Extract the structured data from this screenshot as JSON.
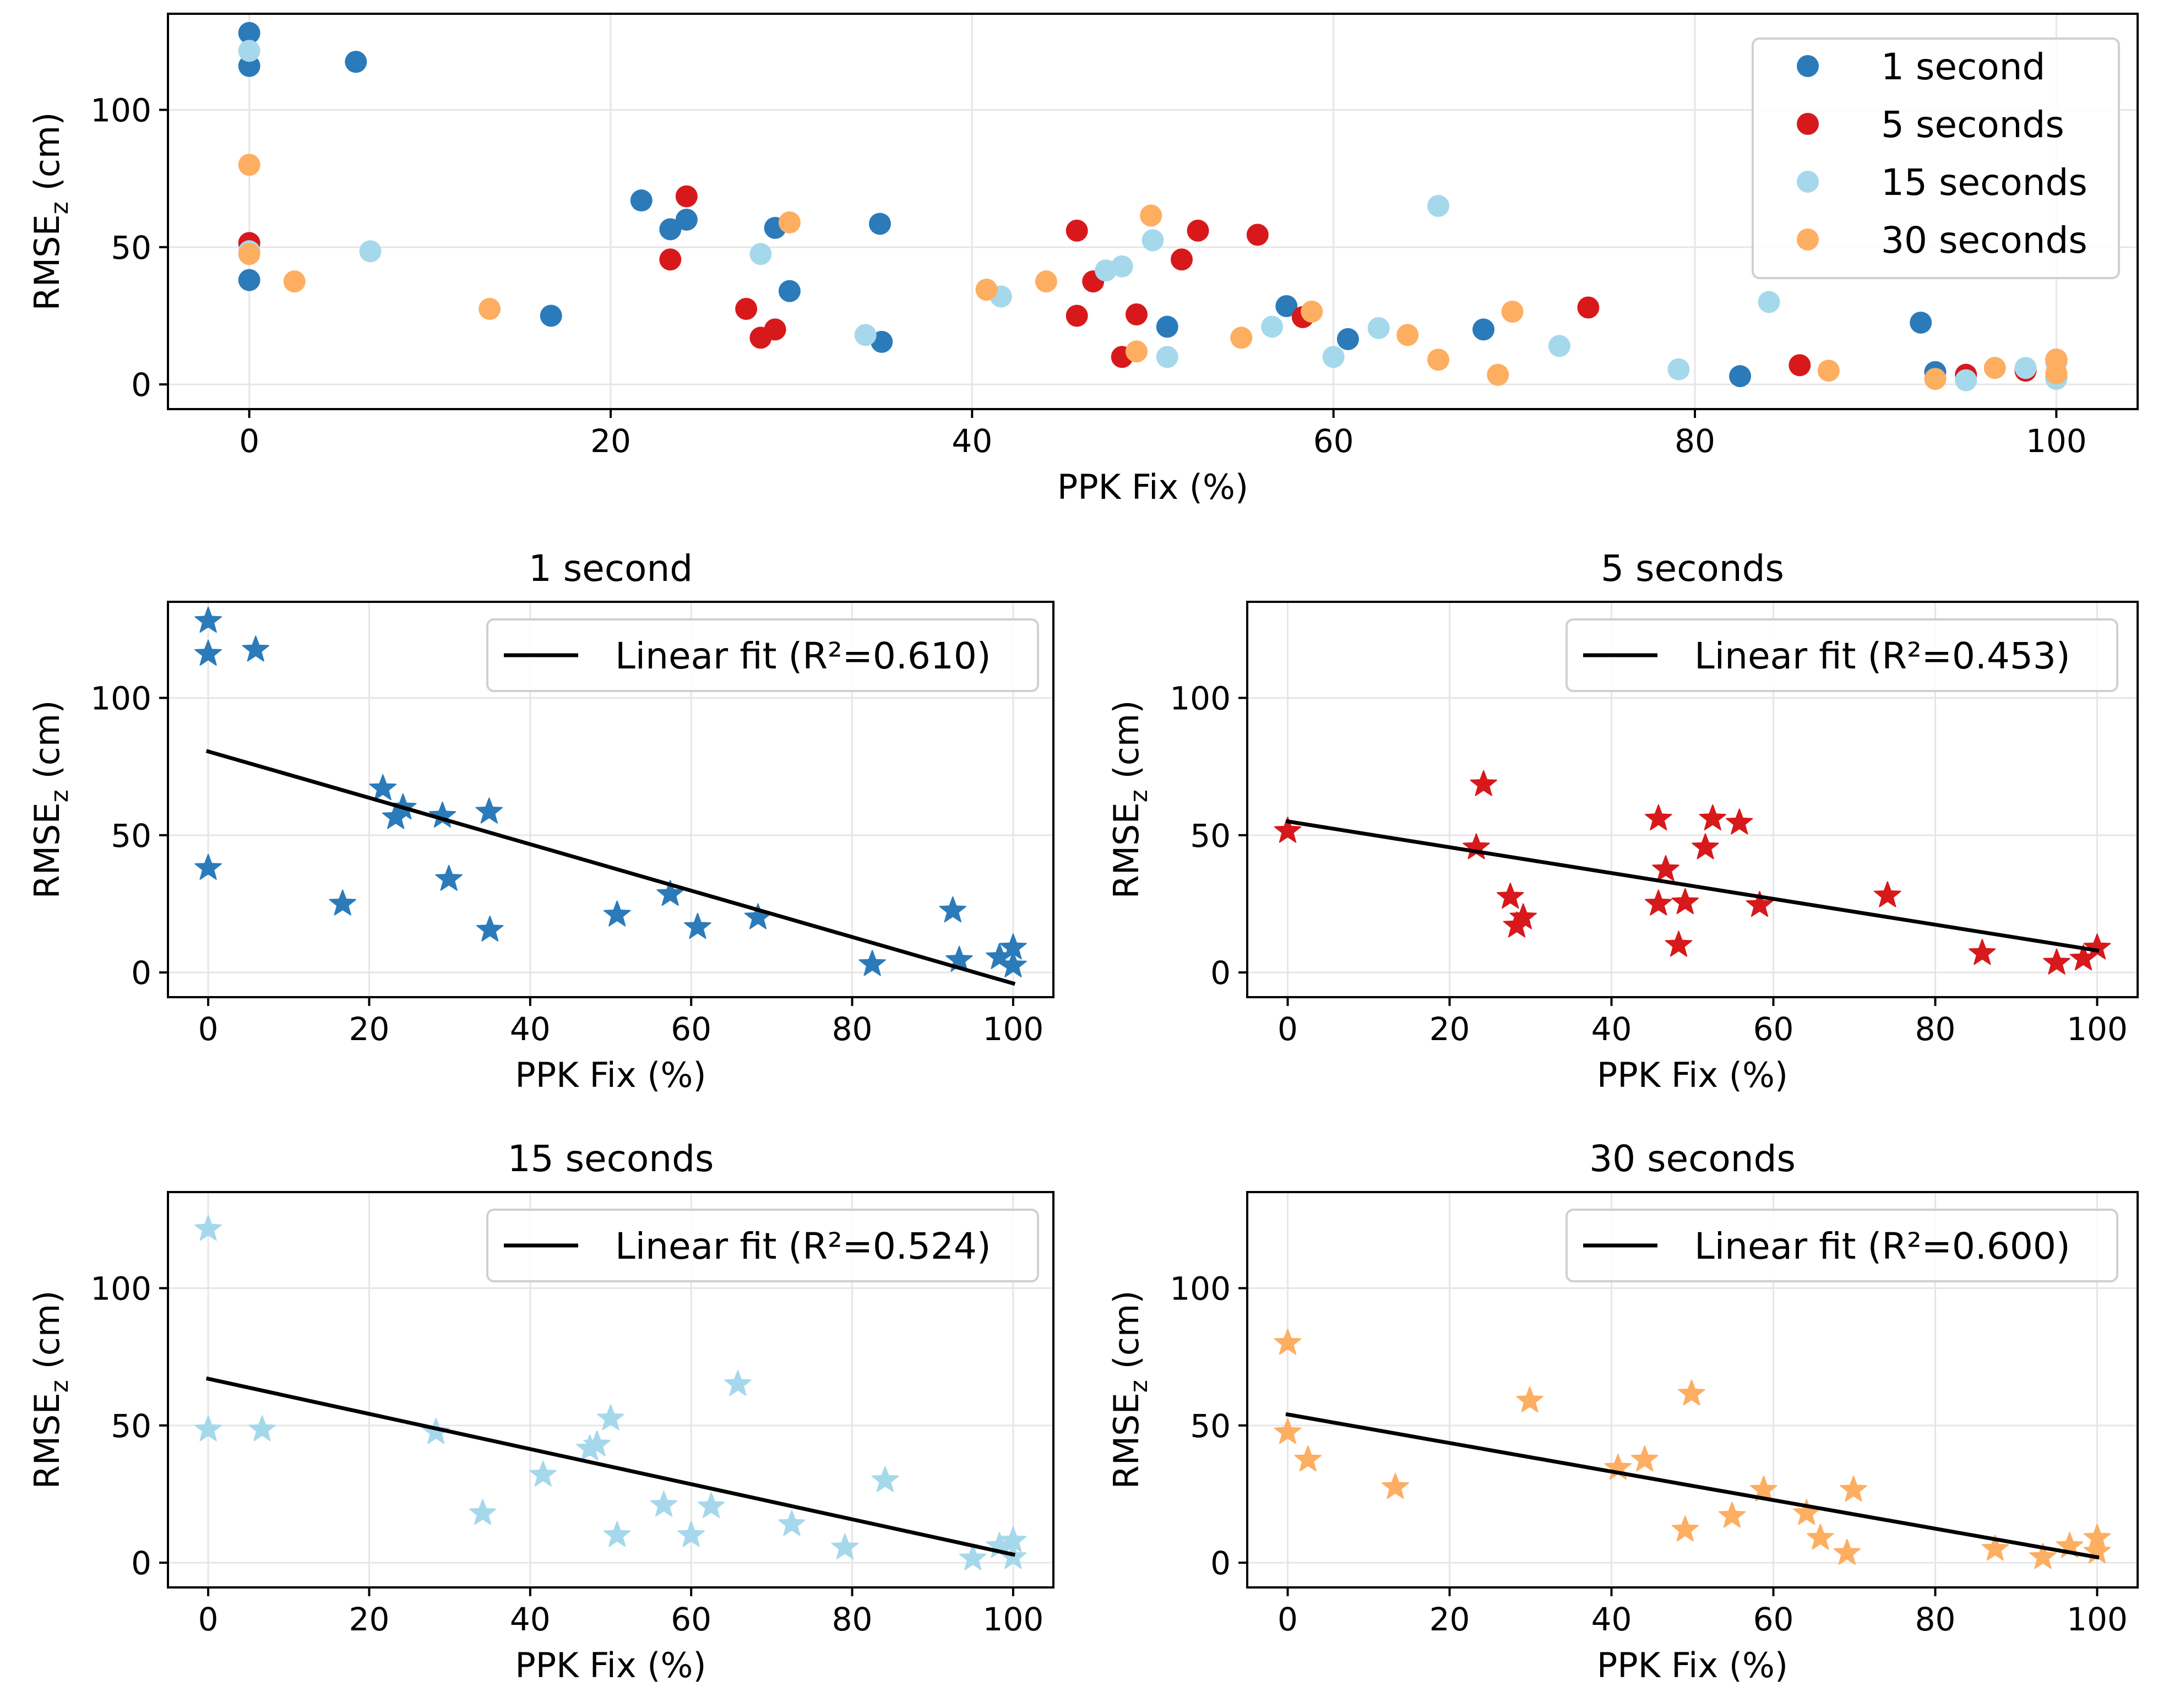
{
  "chart_data": [
    {
      "id": "combined",
      "type": "scatter",
      "title": "",
      "xlabel": "PPK Fix (%)",
      "ylabel_main": "RMSE",
      "ylabel_sub": "z",
      "ylabel_unit": " (cm)",
      "xlim": [
        -4.5,
        104.5
      ],
      "ylim": [
        -9,
        135
      ],
      "xticks": [
        0,
        20,
        40,
        60,
        80,
        100
      ],
      "yticks": [
        0,
        50,
        100
      ],
      "grid": true,
      "legend_position": "top-right",
      "series": [
        {
          "name": "1 second",
          "color": "#2b7bba",
          "marker": "circle",
          "x": [
            0,
            0,
            0,
            5.9,
            16.7,
            21.7,
            23.3,
            24.2,
            29.1,
            29.9,
            34.9,
            35,
            50.8,
            57.4,
            60.8,
            68.3,
            82.5,
            92.5,
            93.3,
            98.3,
            100,
            100
          ],
          "y": [
            128,
            116,
            38,
            117.5,
            25,
            67,
            56.5,
            60,
            57,
            34,
            58.5,
            15.5,
            21,
            28.5,
            16.5,
            20,
            3,
            22.5,
            4.5,
            5.5,
            9,
            2.5
          ]
        },
        {
          "name": "5 seconds",
          "color": "#d7191c",
          "marker": "circle",
          "x": [
            0,
            23.3,
            24.2,
            27.5,
            28.3,
            29.1,
            45.8,
            45.8,
            46.7,
            48.3,
            49.1,
            51.6,
            52.5,
            55.8,
            58.3,
            74.1,
            85.8,
            95,
            98.3,
            100
          ],
          "y": [
            51.5,
            45.5,
            68.5,
            27.5,
            17,
            20,
            56,
            25,
            37.5,
            10,
            25.5,
            45.5,
            56,
            54.5,
            24.5,
            28,
            7,
            3.5,
            5,
            9
          ]
        },
        {
          "name": "15 seconds",
          "color": "#a6d8ec",
          "marker": "circle",
          "x": [
            0,
            0,
            6.7,
            28.3,
            34.1,
            41.6,
            47.4,
            48.3,
            50,
            50.8,
            56.6,
            60,
            62.5,
            65.8,
            72.5,
            79.1,
            84.1,
            95,
            98.3,
            100,
            100
          ],
          "y": [
            121.5,
            48.5,
            48.5,
            47.5,
            18,
            32,
            41.5,
            43,
            52.5,
            10,
            21,
            10,
            20.5,
            65,
            14,
            5.5,
            30,
            1.5,
            6,
            8,
            2
          ]
        },
        {
          "name": "30 seconds",
          "color": "#fdae61",
          "marker": "circle",
          "x": [
            0,
            0,
            2.5,
            13.3,
            29.9,
            40.8,
            44.1,
            49.1,
            49.9,
            54.9,
            58.8,
            64.1,
            65.8,
            69.1,
            69.9,
            87.4,
            93.3,
            96.6,
            100,
            100
          ],
          "y": [
            80,
            47.5,
            37.5,
            27.5,
            59,
            34.5,
            37.5,
            12,
            61.5,
            17,
            26.5,
            18,
            9,
            3.5,
            26.5,
            5,
            2,
            6,
            9,
            4
          ]
        }
      ]
    },
    {
      "id": "s1",
      "type": "scatter",
      "title": "1 second",
      "xlabel": "PPK Fix (%)",
      "ylabel_main": "RMSE",
      "ylabel_sub": "z",
      "ylabel_unit": " (cm)",
      "xlim": [
        -5,
        105
      ],
      "ylim": [
        -9,
        135
      ],
      "xticks": [
        0,
        20,
        40,
        60,
        80,
        100
      ],
      "yticks": [
        0,
        50,
        100
      ],
      "grid": true,
      "legend_position": "top-right",
      "color": "#2b7bba",
      "marker": "star",
      "x": [
        0,
        0,
        0,
        5.9,
        16.7,
        21.7,
        23.3,
        24.2,
        29.1,
        29.9,
        34.9,
        35,
        50.8,
        57.4,
        60.8,
        68.3,
        82.5,
        92.5,
        93.3,
        98.3,
        100,
        100
      ],
      "y": [
        128,
        116,
        38,
        117.5,
        25,
        67,
        56.5,
        60,
        57,
        34,
        58.5,
        15.5,
        21,
        28.5,
        16.5,
        20,
        3,
        22.5,
        4.5,
        5.5,
        9,
        2.5
      ],
      "fit": {
        "label": "Linear fit (R²=0.610)",
        "x": [
          0,
          100
        ],
        "y": [
          80.5,
          -4
        ]
      }
    },
    {
      "id": "s5",
      "type": "scatter",
      "title": "5 seconds",
      "xlabel": "PPK Fix (%)",
      "ylabel_main": "RMSE",
      "ylabel_sub": "z",
      "ylabel_unit": " (cm)",
      "xlim": [
        -5,
        105
      ],
      "ylim": [
        -9,
        135
      ],
      "xticks": [
        0,
        20,
        40,
        60,
        80,
        100
      ],
      "yticks": [
        0,
        50,
        100
      ],
      "grid": true,
      "legend_position": "top-right",
      "color": "#d7191c",
      "marker": "star",
      "x": [
        0,
        23.3,
        24.2,
        27.5,
        28.3,
        29.1,
        45.8,
        45.8,
        46.7,
        48.3,
        49.1,
        51.6,
        52.5,
        55.8,
        58.3,
        74.1,
        85.8,
        95,
        98.3,
        100
      ],
      "y": [
        51.5,
        45.5,
        68.5,
        27.5,
        17,
        20,
        56,
        25,
        37.5,
        10,
        25.5,
        45.5,
        56,
        54.5,
        24.5,
        28,
        7,
        3.5,
        5,
        9
      ],
      "fit": {
        "label": "Linear fit (R²=0.453)",
        "x": [
          0,
          100
        ],
        "y": [
          55,
          8
        ]
      }
    },
    {
      "id": "s15",
      "type": "scatter",
      "title": "15 seconds",
      "xlabel": "PPK Fix (%)",
      "ylabel_main": "RMSE",
      "ylabel_sub": "z",
      "ylabel_unit": " (cm)",
      "xlim": [
        -5,
        105
      ],
      "ylim": [
        -9,
        135
      ],
      "xticks": [
        0,
        20,
        40,
        60,
        80,
        100
      ],
      "yticks": [
        0,
        50,
        100
      ],
      "grid": true,
      "legend_position": "top-right",
      "color": "#a6d8ec",
      "marker": "star",
      "x": [
        0,
        0,
        6.7,
        28.3,
        34.1,
        41.6,
        47.4,
        48.3,
        50,
        50.8,
        56.6,
        60,
        62.5,
        65.8,
        72.5,
        79.1,
        84.1,
        95,
        98.3,
        100,
        100
      ],
      "y": [
        121.5,
        48.5,
        48.5,
        47.5,
        18,
        32,
        41.5,
        43,
        52.5,
        10,
        21,
        10,
        20.5,
        65,
        14,
        5.5,
        30,
        1.5,
        6,
        8,
        2
      ],
      "fit": {
        "label": "Linear fit (R²=0.524)",
        "x": [
          0,
          100
        ],
        "y": [
          67,
          3
        ]
      }
    },
    {
      "id": "s30",
      "type": "scatter",
      "title": "30 seconds",
      "xlabel": "PPK Fix (%)",
      "ylabel_main": "RMSE",
      "ylabel_sub": "z",
      "ylabel_unit": " (cm)",
      "xlim": [
        -5,
        105
      ],
      "ylim": [
        -9,
        135
      ],
      "xticks": [
        0,
        20,
        40,
        60,
        80,
        100
      ],
      "yticks": [
        0,
        50,
        100
      ],
      "grid": true,
      "legend_position": "top-right",
      "color": "#fdae61",
      "marker": "star",
      "x": [
        0,
        0,
        2.5,
        13.3,
        29.9,
        40.8,
        44.1,
        49.1,
        49.9,
        54.9,
        58.8,
        64.1,
        65.8,
        69.1,
        69.9,
        87.4,
        93.3,
        96.6,
        100,
        100
      ],
      "y": [
        80,
        47.5,
        37.5,
        27.5,
        59,
        34.5,
        37.5,
        12,
        61.5,
        17,
        26.5,
        18,
        9,
        3.5,
        26.5,
        5,
        2,
        6,
        9,
        4
      ],
      "fit": {
        "label": "Linear fit (R²=0.600)",
        "x": [
          0,
          100
        ],
        "y": [
          54,
          2
        ]
      }
    }
  ]
}
